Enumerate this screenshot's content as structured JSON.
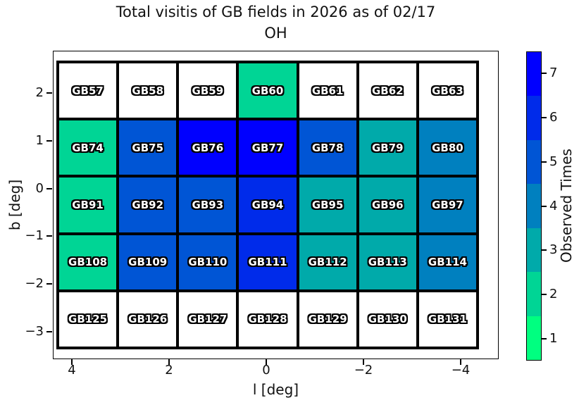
{
  "title": {
    "line1": "Total visitis of GB fields in 2026 as of 02/17",
    "line2": "OH"
  },
  "x_axis": {
    "label": "l [deg]",
    "ticks": [
      "4",
      "2",
      "0",
      "−2",
      "−4"
    ]
  },
  "y_axis": {
    "label": "b [deg]",
    "ticks": [
      "2",
      "1",
      "0",
      "−1",
      "−2",
      "−3"
    ]
  },
  "colorbar": {
    "label": "Observed Times",
    "ticks_top_to_bottom": [
      "7",
      "6",
      "5",
      "4",
      "3",
      "2",
      "1"
    ],
    "band_colors_top_to_bottom": [
      "#0000ff",
      "#002bea",
      "#0055d5",
      "#0080bf",
      "#00aaaa",
      "#00d595",
      "#00ff80"
    ],
    "value_colors": {
      "1": "#00ff80",
      "2": "#00d595",
      "3": "#00aaaa",
      "4": "#0080bf",
      "5": "#0055d5",
      "6": "#002bea",
      "7": "#0000ff"
    },
    "unobserved_color": "#ffffff"
  },
  "chart_data": {
    "type": "heatmap",
    "title": "Total visitis of GB fields in 2026 as of 02/17 OH",
    "xlabel": "l [deg]",
    "ylabel": "b [deg]",
    "x_ticks": [
      4,
      2,
      0,
      -2,
      -4
    ],
    "y_ticks": [
      2,
      1,
      0,
      -1,
      -2,
      -3
    ],
    "x_axis_inverted": true,
    "colorbar_label": "Observed Times",
    "colorbar_levels": [
      1,
      2,
      3,
      4,
      5,
      6,
      7
    ],
    "colormap": "discrete 7-level green-to-blue (winter reversed); unobserved fields drawn white",
    "fields": [
      [
        {
          "name": "GB57",
          "observed": null
        },
        {
          "name": "GB58",
          "observed": null
        },
        {
          "name": "GB59",
          "observed": null
        },
        {
          "name": "GB60",
          "observed": 2
        },
        {
          "name": "GB61",
          "observed": null
        },
        {
          "name": "GB62",
          "observed": null
        },
        {
          "name": "GB63",
          "observed": null
        }
      ],
      [
        {
          "name": "GB74",
          "observed": 2
        },
        {
          "name": "GB75",
          "observed": 5
        },
        {
          "name": "GB76",
          "observed": 7
        },
        {
          "name": "GB77",
          "observed": 7
        },
        {
          "name": "GB78",
          "observed": 5
        },
        {
          "name": "GB79",
          "observed": 3
        },
        {
          "name": "GB80",
          "observed": 4
        }
      ],
      [
        {
          "name": "GB91",
          "observed": 2
        },
        {
          "name": "GB92",
          "observed": 5
        },
        {
          "name": "GB93",
          "observed": 5
        },
        {
          "name": "GB94",
          "observed": 6
        },
        {
          "name": "GB95",
          "observed": 3
        },
        {
          "name": "GB96",
          "observed": 3
        },
        {
          "name": "GB97",
          "observed": 4
        }
      ],
      [
        {
          "name": "GB108",
          "observed": 2
        },
        {
          "name": "GB109",
          "observed": 5
        },
        {
          "name": "GB110",
          "observed": 5
        },
        {
          "name": "GB111",
          "observed": 6
        },
        {
          "name": "GB112",
          "observed": 3
        },
        {
          "name": "GB113",
          "observed": 3
        },
        {
          "name": "GB114",
          "observed": 4
        }
      ],
      [
        {
          "name": "GB125",
          "observed": null
        },
        {
          "name": "GB126",
          "observed": null
        },
        {
          "name": "GB127",
          "observed": null
        },
        {
          "name": "GB128",
          "observed": null
        },
        {
          "name": "GB129",
          "observed": null
        },
        {
          "name": "GB130",
          "observed": null
        },
        {
          "name": "GB131",
          "observed": null
        }
      ]
    ]
  }
}
